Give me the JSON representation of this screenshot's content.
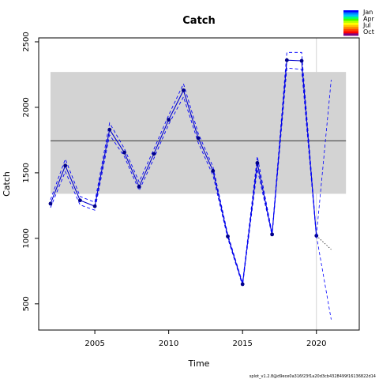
{
  "chart_data": {
    "type": "line",
    "title": "Catch",
    "xlabel": "Time",
    "ylabel": "Catch",
    "xlim": [
      2001.2,
      2022.9
    ],
    "ylim": [
      300,
      2530
    ],
    "x_ticks": [
      2005,
      2010,
      2015,
      2020
    ],
    "y_ticks": [
      500,
      1000,
      1500,
      2000,
      2500
    ],
    "reference_band": {
      "x": [
        2002,
        2022
      ],
      "y": [
        1340,
        2270
      ],
      "color": "#d3d3d3"
    },
    "mean_line": {
      "y": 1745,
      "x": [
        2002,
        2022
      ]
    },
    "vertical_marker": {
      "x": 2020
    },
    "series": [
      {
        "name": "",
        "x": [
          2002,
          2003,
          2004,
          2005,
          2006,
          2007,
          2008,
          2009,
          2010,
          2011,
          2012,
          2013,
          2014,
          2015,
          2016,
          2017,
          2018,
          2019,
          2020
        ],
        "values": [
          1265,
          1555,
          1290,
          1245,
          1830,
          1655,
          1395,
          1645,
          1905,
          2130,
          1765,
          1515,
          1015,
          650,
          1575,
          1030,
          2360,
          2355,
          1020
        ],
        "color": "#0000cd"
      },
      {
        "name": "",
        "x": [
          2002,
          2003,
          2004,
          2005,
          2006,
          2007,
          2008,
          2009,
          2010,
          2011,
          2012,
          2013,
          2014,
          2015,
          2016,
          2017,
          2018,
          2019,
          2020
        ],
        "values": [
          1295,
          1605,
          1320,
          1275,
          1880,
          1685,
          1430,
          1680,
          1940,
          2180,
          1800,
          1545,
          1030,
          660,
          1625,
          1040,
          2420,
          2420,
          1030
        ],
        "style": "dashed",
        "color": "#0000ff"
      },
      {
        "name": "",
        "x": [
          2002,
          2003,
          2004,
          2005,
          2006,
          2007,
          2008,
          2009,
          2010,
          2011,
          2012,
          2013,
          2014,
          2015,
          2016,
          2017,
          2018,
          2019,
          2020
        ],
        "values": [
          1235,
          1510,
          1255,
          1215,
          1790,
          1625,
          1365,
          1610,
          1870,
          2080,
          1730,
          1480,
          1000,
          640,
          1530,
          1020,
          2300,
          2290,
          1010
        ],
        "style": "dashed",
        "color": "#0000ff"
      }
    ],
    "forecast": {
      "from": {
        "x": 2020,
        "y": 1020
      },
      "to_x": 2021,
      "central": 915,
      "upper": 2210,
      "lower": 380
    },
    "legend": {
      "position": "top-right",
      "labels": [
        "Jan",
        "Apr",
        "Jul",
        "Oct"
      ],
      "colors": [
        "#0000ff",
        "#0080ff",
        "#00c0ff",
        "#00ff80",
        "#40ff00",
        "#c0ff00",
        "#ffff00",
        "#ffc000",
        "#ff8000",
        "#ff4000",
        "#ff0000",
        "#800080"
      ]
    },
    "footnote": "splot_v1.2.8@d9ece0a316f23f1a20d3cb4328499f16136822d14"
  }
}
